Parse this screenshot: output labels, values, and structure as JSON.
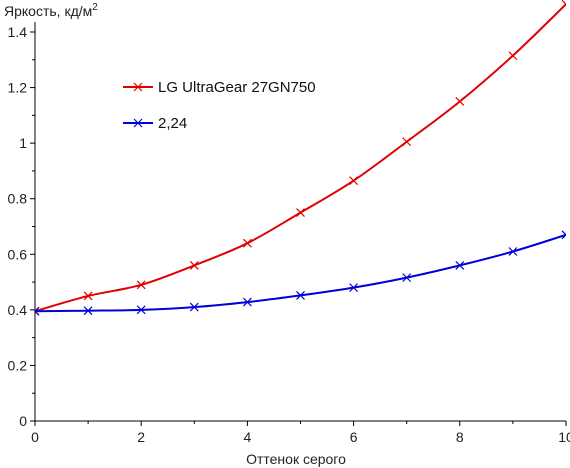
{
  "chart_data": {
    "type": "line",
    "title": "",
    "ylabel": "Яркость, кд/м",
    "ylabel_sup": "2",
    "xlabel": "Оттенок серого",
    "xlim": [
      0,
      10
    ],
    "ylim": [
      0,
      1.4
    ],
    "x_ticks": [
      "0",
      "2",
      "4",
      "6",
      "8",
      "10"
    ],
    "y_ticks": [
      "0",
      "0.2",
      "0.4",
      "0.6",
      "0.8",
      "1",
      "1.2",
      "1.4"
    ],
    "grid": false,
    "legend_placement": "top-left",
    "marker": "x",
    "series": [
      {
        "name": "LG UltraGear 27GN750",
        "color": "#e00000",
        "x": [
          0,
          1,
          2,
          3,
          4,
          5,
          6,
          7,
          8,
          9,
          10
        ],
        "values": [
          0.395,
          0.45,
          0.49,
          0.56,
          0.64,
          0.75,
          0.865,
          1.005,
          1.15,
          1.315,
          1.5
        ]
      },
      {
        "name": "2,24",
        "color": "#0000d8",
        "x": [
          0,
          1,
          2,
          3,
          4,
          5,
          6,
          7,
          8,
          9,
          10
        ],
        "values": [
          0.395,
          0.397,
          0.4,
          0.41,
          0.428,
          0.452,
          0.48,
          0.516,
          0.56,
          0.61,
          0.67
        ]
      }
    ]
  }
}
